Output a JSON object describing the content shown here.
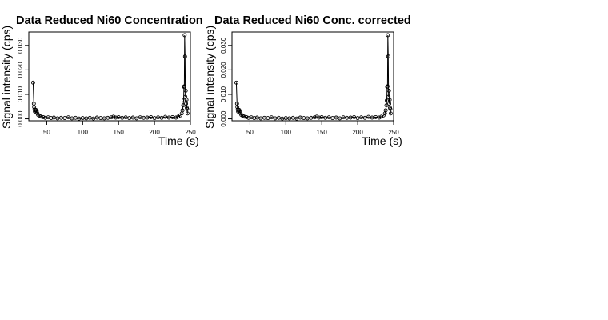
{
  "chart_data": [
    {
      "type": "scatter",
      "title": "Data Reduced Ni60 Concentration",
      "xlabel": "Time (s)",
      "ylabel": "Signal intensity (cps)",
      "xlim": [
        25,
        250
      ],
      "ylim": [
        -0.0008,
        0.0355
      ],
      "xticks": [
        "50",
        "100",
        "150",
        "200",
        "250"
      ],
      "yticks": [
        "0.000",
        "0.010",
        "0.020",
        "0.030"
      ],
      "grid": false,
      "style": "open circles joined by lines",
      "color": "#000000",
      "series": [
        {
          "points": [
            [
              31,
              0.0148
            ],
            [
              32,
              0.0062
            ],
            [
              32.5,
              0.0048
            ],
            [
              33,
              0.0038
            ],
            [
              33.5,
              0.003
            ],
            [
              34,
              0.0034
            ],
            [
              35,
              0.0036
            ],
            [
              36,
              0.0031
            ],
            [
              37,
              0.0022
            ],
            [
              38,
              0.0016
            ],
            [
              40,
              0.0012
            ],
            [
              42,
              0.0009
            ],
            [
              45,
              0.0007
            ],
            [
              48,
              0.0004
            ],
            [
              52,
              0.0006
            ],
            [
              56,
              0.0003
            ],
            [
              60,
              0.0005
            ],
            [
              65,
              0.0002
            ],
            [
              70,
              0.0004
            ],
            [
              75,
              0.0003
            ],
            [
              80,
              0.0006
            ],
            [
              85,
              0.0002
            ],
            [
              90,
              0.0004
            ],
            [
              95,
              0.0001
            ],
            [
              100,
              0.0003
            ],
            [
              105,
              0.0002
            ],
            [
              110,
              0.0004
            ],
            [
              115,
              0.0001
            ],
            [
              120,
              0.0005
            ],
            [
              125,
              0.0003
            ],
            [
              130,
              0.0002
            ],
            [
              135,
              0.0004
            ],
            [
              140,
              0.0006
            ],
            [
              143,
              0.0009
            ],
            [
              146,
              0.0005
            ],
            [
              150,
              0.0007
            ],
            [
              155,
              0.0004
            ],
            [
              160,
              0.0006
            ],
            [
              165,
              0.0003
            ],
            [
              170,
              0.0005
            ],
            [
              175,
              0.0002
            ],
            [
              180,
              0.0006
            ],
            [
              185,
              0.0004
            ],
            [
              190,
              0.0005
            ],
            [
              195,
              0.0007
            ],
            [
              200,
              0.0003
            ],
            [
              205,
              0.0006
            ],
            [
              210,
              0.0004
            ],
            [
              215,
              0.0008
            ],
            [
              220,
              0.0005
            ],
            [
              225,
              0.0007
            ],
            [
              230,
              0.0005
            ],
            [
              233,
              0.0009
            ],
            [
              236,
              0.0014
            ],
            [
              238,
              0.0022
            ],
            [
              239,
              0.0035
            ],
            [
              240,
              0.0055
            ],
            [
              240.5,
              0.0075
            ],
            [
              241,
              0.0131
            ],
            [
              241.5,
              0.0133
            ],
            [
              242,
              0.0342
            ],
            [
              242.5,
              0.0255
            ],
            [
              243,
              0.009
            ],
            [
              243.5,
              0.0115
            ],
            [
              244,
              0.0062
            ],
            [
              244.5,
              0.0078
            ],
            [
              245,
              0.0045
            ],
            [
              245.5,
              0.004
            ],
            [
              246,
              0.0022
            ]
          ]
        }
      ]
    },
    {
      "type": "scatter",
      "title": "Data Reduced Ni60 Conc. corrected",
      "xlabel": "Time (s)",
      "ylabel": "Signal intensity (cps)",
      "xlim": [
        25,
        250
      ],
      "ylim": [
        -0.0008,
        0.0355
      ],
      "xticks": [
        "50",
        "100",
        "150",
        "200",
        "250"
      ],
      "yticks": [
        "0.000",
        "0.010",
        "0.020",
        "0.030"
      ],
      "grid": false,
      "style": "open circles joined by lines",
      "color": "#000000",
      "series": [
        {
          "points": [
            [
              31,
              0.0148
            ],
            [
              32,
              0.0062
            ],
            [
              32.5,
              0.0048
            ],
            [
              33,
              0.0038
            ],
            [
              33.5,
              0.003
            ],
            [
              34,
              0.0034
            ],
            [
              35,
              0.0036
            ],
            [
              36,
              0.0031
            ],
            [
              37,
              0.0022
            ],
            [
              38,
              0.0016
            ],
            [
              40,
              0.0012
            ],
            [
              42,
              0.0009
            ],
            [
              45,
              0.0007
            ],
            [
              48,
              0.0004
            ],
            [
              52,
              0.0006
            ],
            [
              56,
              0.0003
            ],
            [
              60,
              0.0005
            ],
            [
              65,
              0.0002
            ],
            [
              70,
              0.0004
            ],
            [
              75,
              0.0003
            ],
            [
              80,
              0.0006
            ],
            [
              85,
              0.0002
            ],
            [
              90,
              0.0004
            ],
            [
              95,
              0.0001
            ],
            [
              100,
              0.0003
            ],
            [
              105,
              0.0002
            ],
            [
              110,
              0.0004
            ],
            [
              115,
              0.0001
            ],
            [
              120,
              0.0005
            ],
            [
              125,
              0.0003
            ],
            [
              130,
              0.0002
            ],
            [
              135,
              0.0004
            ],
            [
              140,
              0.0006
            ],
            [
              143,
              0.0009
            ],
            [
              146,
              0.0005
            ],
            [
              150,
              0.0007
            ],
            [
              155,
              0.0004
            ],
            [
              160,
              0.0006
            ],
            [
              165,
              0.0003
            ],
            [
              170,
              0.0005
            ],
            [
              175,
              0.0002
            ],
            [
              180,
              0.0006
            ],
            [
              185,
              0.0004
            ],
            [
              190,
              0.0005
            ],
            [
              195,
              0.0007
            ],
            [
              200,
              0.0003
            ],
            [
              205,
              0.0006
            ],
            [
              210,
              0.0004
            ],
            [
              215,
              0.0008
            ],
            [
              220,
              0.0005
            ],
            [
              225,
              0.0007
            ],
            [
              230,
              0.0005
            ],
            [
              233,
              0.0009
            ],
            [
              236,
              0.0014
            ],
            [
              238,
              0.0022
            ],
            [
              239,
              0.0035
            ],
            [
              240,
              0.0055
            ],
            [
              240.5,
              0.0075
            ],
            [
              241,
              0.0131
            ],
            [
              241.5,
              0.0133
            ],
            [
              242,
              0.0342
            ],
            [
              242.5,
              0.0255
            ],
            [
              243,
              0.009
            ],
            [
              243.5,
              0.0115
            ],
            [
              244,
              0.0062
            ],
            [
              244.5,
              0.0078
            ],
            [
              245,
              0.0045
            ],
            [
              245.5,
              0.004
            ],
            [
              246,
              0.0022
            ]
          ]
        }
      ]
    }
  ]
}
